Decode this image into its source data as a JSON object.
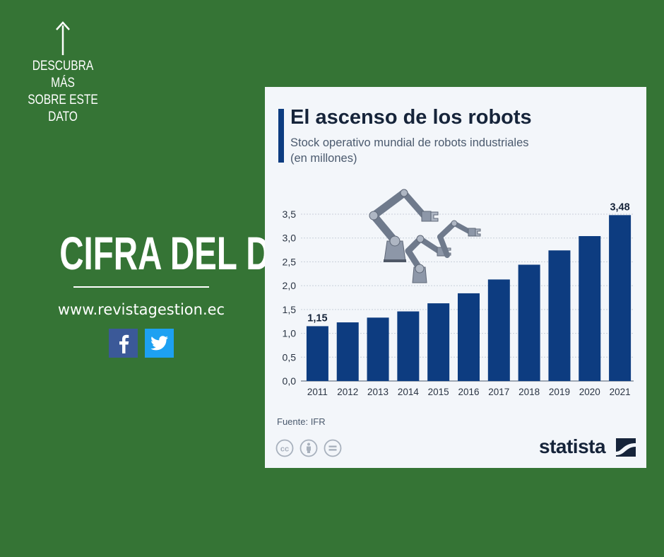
{
  "promo": {
    "discover_lines": [
      "DESCUBRA MÁS",
      "SOBRE ESTE",
      "DATO"
    ],
    "headline": "CIFRA DEL DÍA",
    "website": "www.revistagestion.ec",
    "social": [
      "facebook-icon",
      "twitter-icon"
    ]
  },
  "card": {
    "title": "El ascenso de los robots",
    "subtitle": "Stock operativo mundial de robots industriales (en millones)",
    "source": "Fuente: IFR",
    "brand": "statista",
    "license_icons": [
      "cc-icon",
      "attribution-icon",
      "no-derivatives-icon"
    ]
  },
  "colors": {
    "background": "#357435",
    "bar": "#0d3c80",
    "card": "#f3f6fa",
    "title_accent": "#0d3c80"
  },
  "chart_data": {
    "type": "bar",
    "title": "El ascenso de los robots",
    "subtitle": "Stock operativo mundial de robots industriales (en millones)",
    "categories": [
      "2011",
      "2012",
      "2013",
      "2014",
      "2015",
      "2016",
      "2017",
      "2018",
      "2019",
      "2020",
      "2021"
    ],
    "values": [
      1.15,
      1.23,
      1.33,
      1.46,
      1.63,
      1.84,
      2.13,
      2.44,
      2.74,
      3.04,
      3.48
    ],
    "data_labels": [
      {
        "index": 0,
        "text": "1,15"
      },
      {
        "index": 10,
        "text": "3,48"
      }
    ],
    "y_ticks": [
      0,
      0.5,
      1.0,
      1.5,
      2.0,
      2.5,
      3.0,
      3.5
    ],
    "y_tick_labels": [
      "0,0",
      "0,5",
      "1,0",
      "1,5",
      "2,0",
      "2,5",
      "3,0",
      "3,5"
    ],
    "ylim": [
      0,
      3.5
    ],
    "xlabel": "",
    "ylabel": "",
    "grid": true,
    "legend": "none"
  }
}
